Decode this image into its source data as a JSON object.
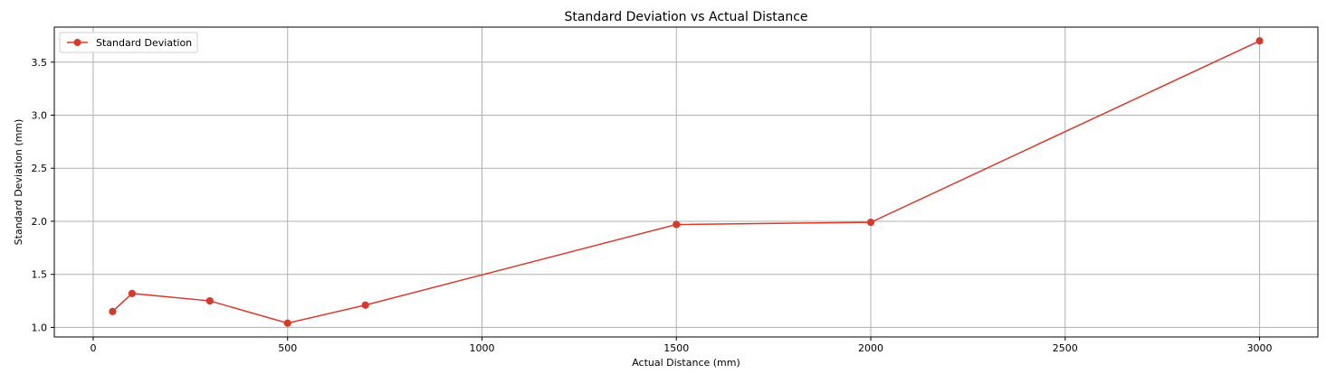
{
  "chart_data": {
    "type": "line",
    "title": "Standard Deviation vs Actual Distance",
    "xlabel": "Actual Distance (mm)",
    "ylabel": "Standard Deviation (mm)",
    "xlim": [
      -100,
      3150
    ],
    "ylim": [
      0.91,
      3.83
    ],
    "grid": true,
    "legend": "top-left",
    "x_ticks": [
      0,
      500,
      1000,
      1500,
      2000,
      2500,
      3000
    ],
    "x_tick_labels": [
      "0",
      "500",
      "1000",
      "1500",
      "2000",
      "2500",
      "3000"
    ],
    "y_ticks": [
      1.0,
      1.5,
      2.0,
      2.5,
      3.0,
      3.5
    ],
    "y_tick_labels": [
      "1.0",
      "1.5",
      "2.0",
      "2.5",
      "3.0",
      "3.5"
    ],
    "series": [
      {
        "name": "Standard Deviation",
        "color": "#D83A2A",
        "marker": "circle",
        "x": [
          50,
          100,
          300,
          500,
          700,
          1500,
          2000,
          3000
        ],
        "y": [
          1.15,
          1.32,
          1.25,
          1.04,
          1.21,
          1.97,
          1.99,
          3.7
        ]
      }
    ]
  }
}
